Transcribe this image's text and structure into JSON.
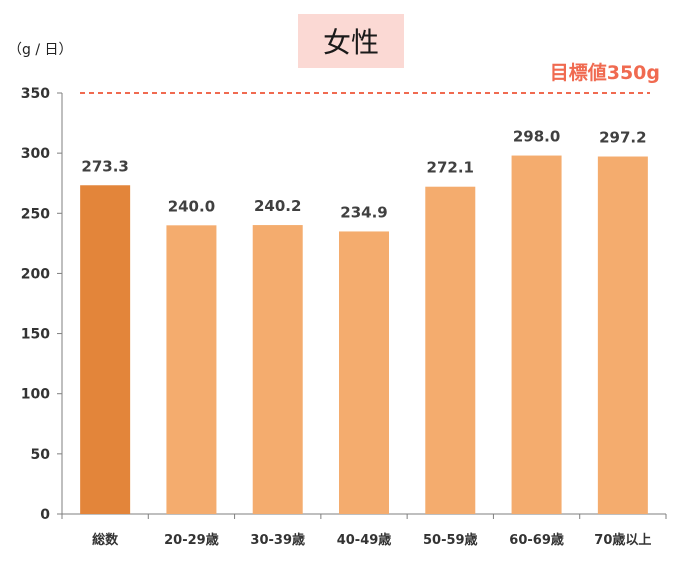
{
  "chart_data": {
    "type": "bar",
    "title": "女性",
    "unit_label": "（g / 日）",
    "categories": [
      "総数",
      "20-29歳",
      "30-39歳",
      "40-49歳",
      "50-59歳",
      "60-69歳",
      "70歳以上"
    ],
    "values": [
      273.3,
      240.0,
      240.2,
      234.9,
      272.1,
      298.0,
      297.2
    ],
    "value_labels": [
      "273.3",
      "240.0",
      "240.2",
      "234.9",
      "272.1",
      "298.0",
      "297.2"
    ],
    "ylim": [
      0,
      350
    ],
    "yticks": [
      0,
      50,
      100,
      150,
      200,
      250,
      300,
      350
    ],
    "grid": false,
    "target": {
      "label": "目標値350g",
      "value": 350
    },
    "colors": {
      "highlight_bar": "#E3853A",
      "bar": "#F4AC6E",
      "target_line": "#F06A50",
      "title_bg": "#FBD9D4",
      "axis": "#7f7f7f"
    }
  }
}
